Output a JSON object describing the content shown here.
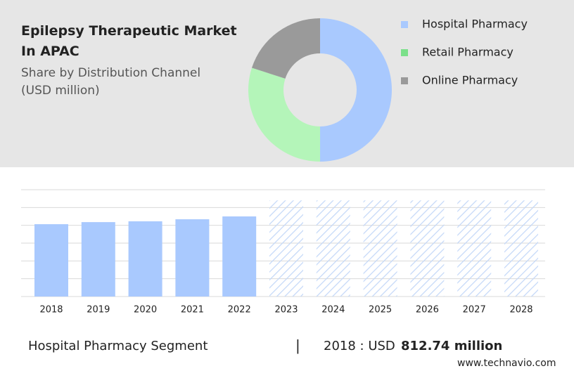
{
  "header": {
    "title": "Epilepsy Therapeutic Market In APAC",
    "subtitle": "Share by Distribution Channel (USD million)"
  },
  "chart_data": [
    {
      "type": "donut",
      "categories": [
        "Hospital Pharmacy",
        "Retail Pharmacy",
        "Online Pharmacy"
      ],
      "values": [
        50,
        30,
        20
      ],
      "colors": [
        "#a9c9fe",
        "#b4f5b9",
        "#9a9a9a"
      ],
      "legend_colors": [
        "#a9c9fe",
        "#7be08a",
        "#9a9a9a"
      ]
    },
    {
      "type": "bar",
      "categories": [
        "2018",
        "2019",
        "2020",
        "2021",
        "2022",
        "2023",
        "2024",
        "2025",
        "2026",
        "2027",
        "2028"
      ],
      "values": [
        812.74,
        836,
        845,
        868,
        900,
        1080,
        1080,
        1080,
        1080,
        1080,
        1080
      ],
      "hatched": [
        false,
        false,
        false,
        false,
        false,
        true,
        true,
        true,
        true,
        true,
        true
      ],
      "color": "#a9c9fe",
      "hatch_color": "#c4d8f8",
      "ylim": [
        0,
        1200
      ],
      "yticks": [
        0,
        200,
        400,
        600,
        800,
        1000,
        1200
      ],
      "grid": true
    }
  ],
  "footer": {
    "segment": "Hospital Pharmacy Segment",
    "label": "2018 : USD",
    "value": 812.74,
    "value_label": "812.74 million",
    "source": "www.technavio.com"
  }
}
